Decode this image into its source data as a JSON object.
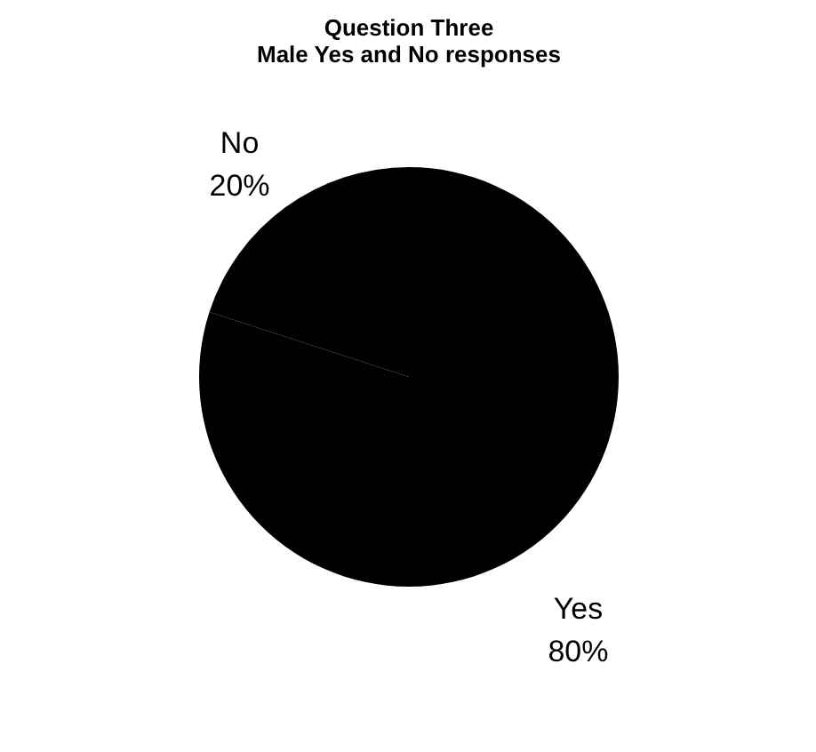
{
  "chart_data": {
    "type": "pie",
    "title": "Question Three\nMale Yes and No responses",
    "categories": [
      "Yes",
      "No"
    ],
    "values": [
      80,
      20
    ],
    "value_labels": [
      "80%",
      "20%"
    ],
    "colors": [
      "#000000",
      "#000000"
    ],
    "legend": false
  }
}
